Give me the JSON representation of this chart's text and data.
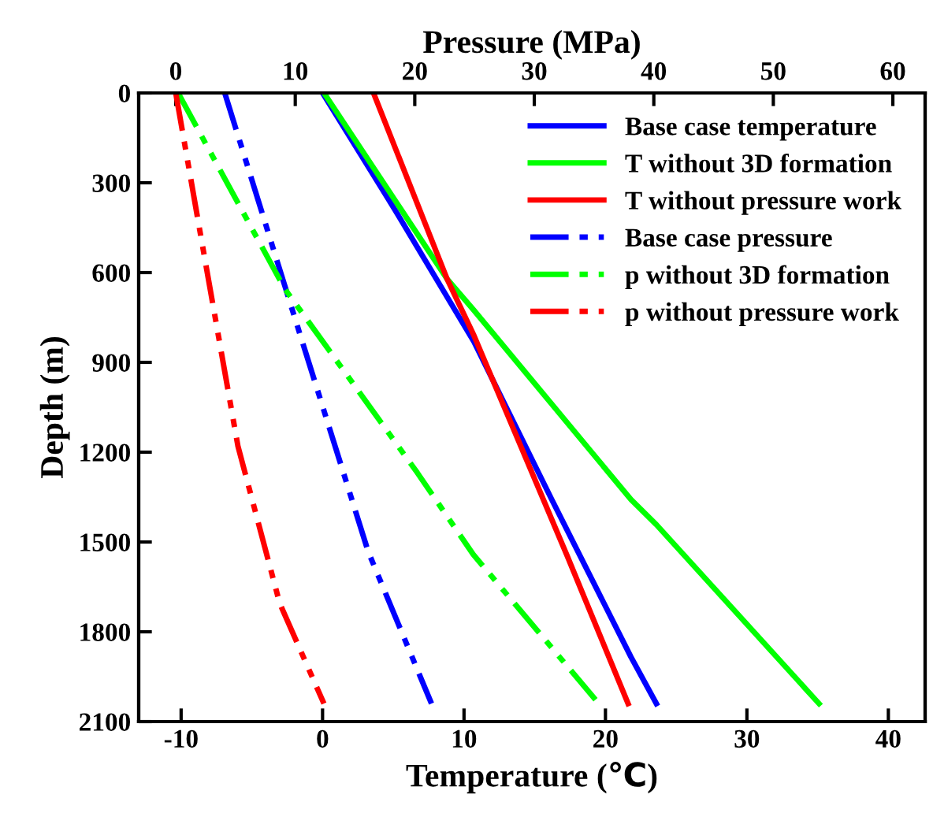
{
  "chart_data": {
    "type": "line",
    "xlabel": "Temperature (℃)",
    "x2label": "Pressure (MPa)",
    "ylabel": "Depth (m)",
    "xlim": [
      -13,
      42.6
    ],
    "xticks": [
      -10,
      0,
      10,
      20,
      30,
      40
    ],
    "x2lim": [
      -3.1,
      62.7
    ],
    "x2ticks": [
      0,
      10,
      20,
      30,
      40,
      50,
      60
    ],
    "ylim": [
      2100,
      0
    ],
    "yticks": [
      0,
      300,
      600,
      900,
      1200,
      1500,
      1800,
      2100
    ],
    "grid": false,
    "legend": "top right",
    "marker": "none",
    "series": [
      {
        "name": "Base case temperature",
        "color": "#0000ff",
        "line_style": "solid",
        "x": [
          0,
          5.1,
          10.7,
          16.2,
          21.8,
          23.6
        ],
        "values": [
          0,
          389,
          831,
          1358,
          1884,
          2040
        ]
      },
      {
        "name": "T without 3D formation",
        "color": "#00ff00",
        "line_style": "solid",
        "x": [
          0.1,
          8.8,
          10.7,
          21.8,
          23.6,
          35.1
        ],
        "values": [
          0,
          621,
          726,
          1358,
          1442,
          2040
        ]
      },
      {
        "name": "T without pressure work",
        "color": "#ff0000",
        "line_style": "solid",
        "x": [
          3.6,
          8.8,
          10.7,
          17.3,
          21.6
        ],
        "values": [
          0,
          621,
          810,
          1547,
          2040
        ]
      },
      {
        "name": "Base case pressure",
        "color": "#0000ff",
        "line_style": "dashdot",
        "axis": "x2",
        "x": [
          4.1,
          9.6,
          16.1,
          21.4
        ],
        "values": [
          0,
          705,
          1532,
          2040
        ]
      },
      {
        "name": "p without 3D formation",
        "color": "#00ff00",
        "line_style": "dashdot",
        "axis": "x2",
        "x": [
          0.2,
          9.1,
          20.2,
          24.9,
          35.4
        ],
        "values": [
          0,
          653,
          1268,
          1542,
          2040
        ]
      },
      {
        "name": "p without pressure work",
        "color": "#ff0000",
        "line_style": "dashdot",
        "axis": "x2",
        "x": [
          0,
          2.1,
          5.2,
          8.7,
          12.4
        ],
        "values": [
          0,
          479,
          1179,
          1705,
          2040
        ]
      }
    ]
  }
}
